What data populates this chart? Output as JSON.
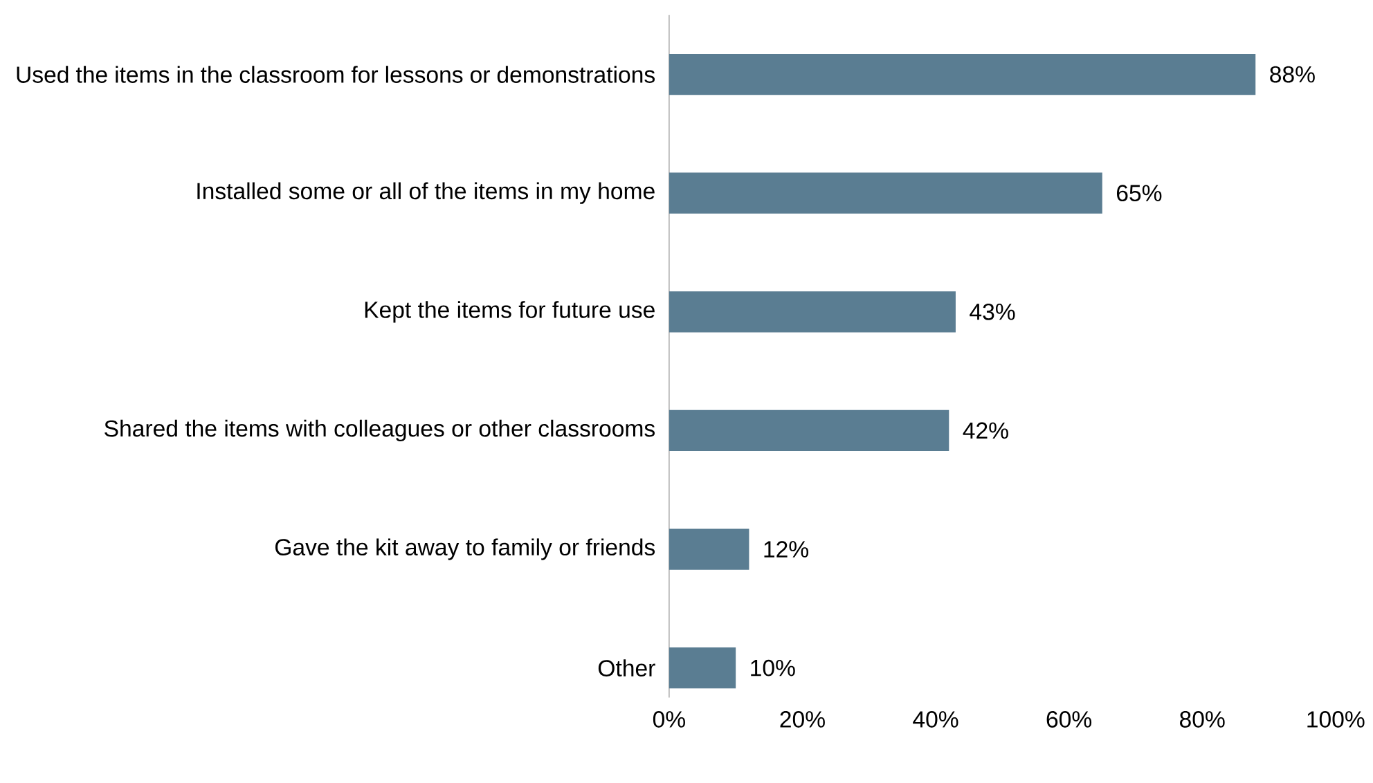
{
  "chart_data": {
    "type": "bar",
    "orientation": "horizontal",
    "categories": [
      "Used the items in the classroom for lessons or demonstrations",
      "Installed some or all of the items in my home",
      "Kept the items for future use",
      "Shared the items with colleagues or other classrooms",
      "Gave the kit away to family or friends",
      "Other"
    ],
    "values": [
      88,
      65,
      43,
      42,
      12,
      10
    ],
    "value_labels": [
      "88%",
      "65%",
      "43%",
      "42%",
      "12%",
      "10%"
    ],
    "color": "#5a7d92",
    "xlim": [
      0,
      100
    ],
    "xticks": [
      {
        "value": 0,
        "label": "0%"
      },
      {
        "value": 20,
        "label": "20%"
      },
      {
        "value": 40,
        "label": "40%"
      },
      {
        "value": 60,
        "label": "60%"
      },
      {
        "value": 80,
        "label": "80%"
      },
      {
        "value": 100,
        "label": "100%"
      }
    ]
  }
}
